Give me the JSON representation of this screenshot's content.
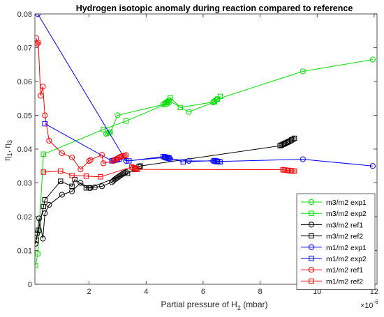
{
  "chart_data": {
    "type": "line",
    "title": "Hydrogen isotopic anomaly during reaction compared to reference",
    "xlabel": "Partial pressure of H",
    "xlabel_sub": "2",
    "xlabel_unit": " (mbar)",
    "ylabel_parts": [
      "η",
      "1",
      ", η",
      "3"
    ],
    "x_multiplier": "×10",
    "x_multiplier_exp": "-6",
    "xlim": [
      0.1,
      12.1
    ],
    "ylim": [
      0,
      0.08
    ],
    "xticks": [
      2,
      4,
      6,
      8,
      10,
      12
    ],
    "xtick_labels": [
      "2",
      "4",
      "6",
      "8",
      "10",
      "12"
    ],
    "yticks": [
      0,
      0.01,
      0.02,
      0.03,
      0.04,
      0.05,
      0.06,
      0.07,
      0.08
    ],
    "ytick_labels": [
      "0",
      "0.01",
      "0.02",
      "0.03",
      "0.04",
      "0.05",
      "0.06",
      "0.07",
      "0.08"
    ],
    "grid": false,
    "legend_position": "bottom-right",
    "series": [
      {
        "name": "m3/m2 exp1",
        "color": "#00e000",
        "marker": "circle",
        "x": [
          2.6,
          2.65,
          2.7,
          2.75,
          3.0,
          4.6,
          4.65,
          4.7,
          4.75,
          4.8,
          5.5,
          6.35,
          6.4,
          6.45,
          6.5,
          9.5,
          11.95
        ],
        "y": [
          0.0445,
          0.0447,
          0.0449,
          0.045,
          0.05,
          0.0532,
          0.0535,
          0.0538,
          0.0541,
          0.0544,
          0.051,
          0.0538,
          0.0542,
          0.0545,
          0.0548,
          0.063,
          0.0665
        ]
      },
      {
        "name": "m3/m2 exp2",
        "color": "#00e000",
        "marker": "square",
        "x": [
          0.12,
          0.2,
          0.4,
          2.5,
          3.3,
          4.7,
          4.75,
          4.8,
          4.85,
          5.2,
          6.4,
          6.5,
          6.6
        ],
        "y": [
          0.0055,
          0.009,
          0.0385,
          0.0458,
          0.0483,
          0.0533,
          0.0537,
          0.054,
          0.0552,
          0.0523,
          0.054,
          0.0548,
          0.0556
        ]
      },
      {
        "name": "m3/m2 ref1",
        "color": "#000000",
        "marker": "circle",
        "x": [
          0.12,
          0.18,
          0.25,
          0.38,
          0.45,
          0.6,
          1.05,
          1.4,
          1.7,
          2.0,
          2.05,
          2.2,
          2.45,
          2.8,
          2.85,
          2.9,
          2.95,
          3.0,
          3.05,
          3.1,
          3.15,
          3.2,
          3.25,
          3.3
        ],
        "y": [
          0.012,
          0.015,
          0.0195,
          0.0135,
          0.021,
          0.0235,
          0.0265,
          0.0275,
          0.03,
          0.0285,
          0.0285,
          0.0287,
          0.029,
          0.0302,
          0.0306,
          0.031,
          0.0313,
          0.0316,
          0.0319,
          0.0322,
          0.0325,
          0.0328,
          0.033,
          0.0332
        ]
      },
      {
        "name": "m3/m2 ref2",
        "color": "#000000",
        "marker": "square",
        "x": [
          0.15,
          0.22,
          0.4,
          0.45,
          1.0,
          1.4,
          1.5,
          1.9,
          2.0,
          3.35,
          3.6,
          3.65,
          3.75,
          3.8,
          8.7,
          8.75,
          8.8,
          8.85,
          8.9,
          8.95,
          9.0,
          9.05,
          9.1,
          9.15,
          9.2
        ],
        "y": [
          0.013,
          0.016,
          0.023,
          0.025,
          0.0305,
          0.029,
          0.031,
          0.0285,
          0.0285,
          0.0328,
          0.034,
          0.0342,
          0.0348,
          0.035,
          0.041,
          0.0412,
          0.0414,
          0.0416,
          0.0418,
          0.042,
          0.0422,
          0.0424,
          0.0427,
          0.0429,
          0.0432
        ]
      },
      {
        "name": "m1/m2 exp1",
        "color": "#0000ff",
        "marker": "circle",
        "x": [
          0.2,
          3.3,
          4.65,
          4.7,
          4.75,
          4.8,
          4.85,
          5.5,
          6.35,
          6.4,
          6.45,
          9.5,
          11.95
        ],
        "y": [
          0.08,
          0.0365,
          0.0375,
          0.0374,
          0.0373,
          0.0372,
          0.0371,
          0.0365,
          0.0365,
          0.0364,
          0.0363,
          0.037,
          0.035
        ]
      },
      {
        "name": "m1/m2 exp2",
        "color": "#0000ff",
        "marker": "square",
        "x": [
          0.45,
          2.8,
          2.85,
          2.9,
          2.95,
          3.0,
          3.05,
          3.4,
          4.6,
          4.65,
          4.7,
          4.75,
          4.8,
          5.3,
          6.4,
          6.45,
          6.5,
          6.55,
          6.6
        ],
        "y": [
          0.0475,
          0.0365,
          0.0366,
          0.0367,
          0.0368,
          0.0369,
          0.037,
          0.0365,
          0.0378,
          0.0377,
          0.0376,
          0.0375,
          0.0374,
          0.0362,
          0.0366,
          0.0365,
          0.0364,
          0.0363,
          0.0362
        ]
      },
      {
        "name": "m1/m2 ref1",
        "color": "#ff0000",
        "marker": "circle",
        "x": [
          0.15,
          0.18,
          0.22,
          0.3,
          0.38,
          0.45,
          0.6,
          1.05,
          1.4,
          1.7,
          2.0,
          2.05,
          2.45,
          2.5,
          2.85,
          2.9,
          2.95,
          3.0,
          3.05,
          3.1,
          3.15,
          3.2,
          3.25,
          3.3
        ],
        "y": [
          0.0728,
          0.0712,
          0.0715,
          0.0558,
          0.0585,
          0.05,
          0.0425,
          0.0388,
          0.0375,
          0.034,
          0.0365,
          0.0368,
          0.0383,
          0.0358,
          0.0365,
          0.0368,
          0.037,
          0.0373,
          0.0375,
          0.0377,
          0.0379,
          0.038,
          0.0381,
          0.0382
        ]
      },
      {
        "name": "m1/m2 ref2",
        "color": "#ff0000",
        "marker": "square",
        "x": [
          0.4,
          1.0,
          1.4,
          1.9,
          2.4,
          3.5,
          3.55,
          3.6,
          3.65,
          3.7,
          8.8,
          8.85,
          8.9,
          8.95,
          9.0,
          9.05,
          9.1,
          9.15,
          9.2
        ],
        "y": [
          0.0332,
          0.0335,
          0.0322,
          0.032,
          0.0318,
          0.0347,
          0.0345,
          0.0343,
          0.0341,
          0.034,
          0.0339,
          0.0338,
          0.0338,
          0.0337,
          0.0337,
          0.0336,
          0.0336,
          0.0335,
          0.0335
        ]
      }
    ]
  }
}
